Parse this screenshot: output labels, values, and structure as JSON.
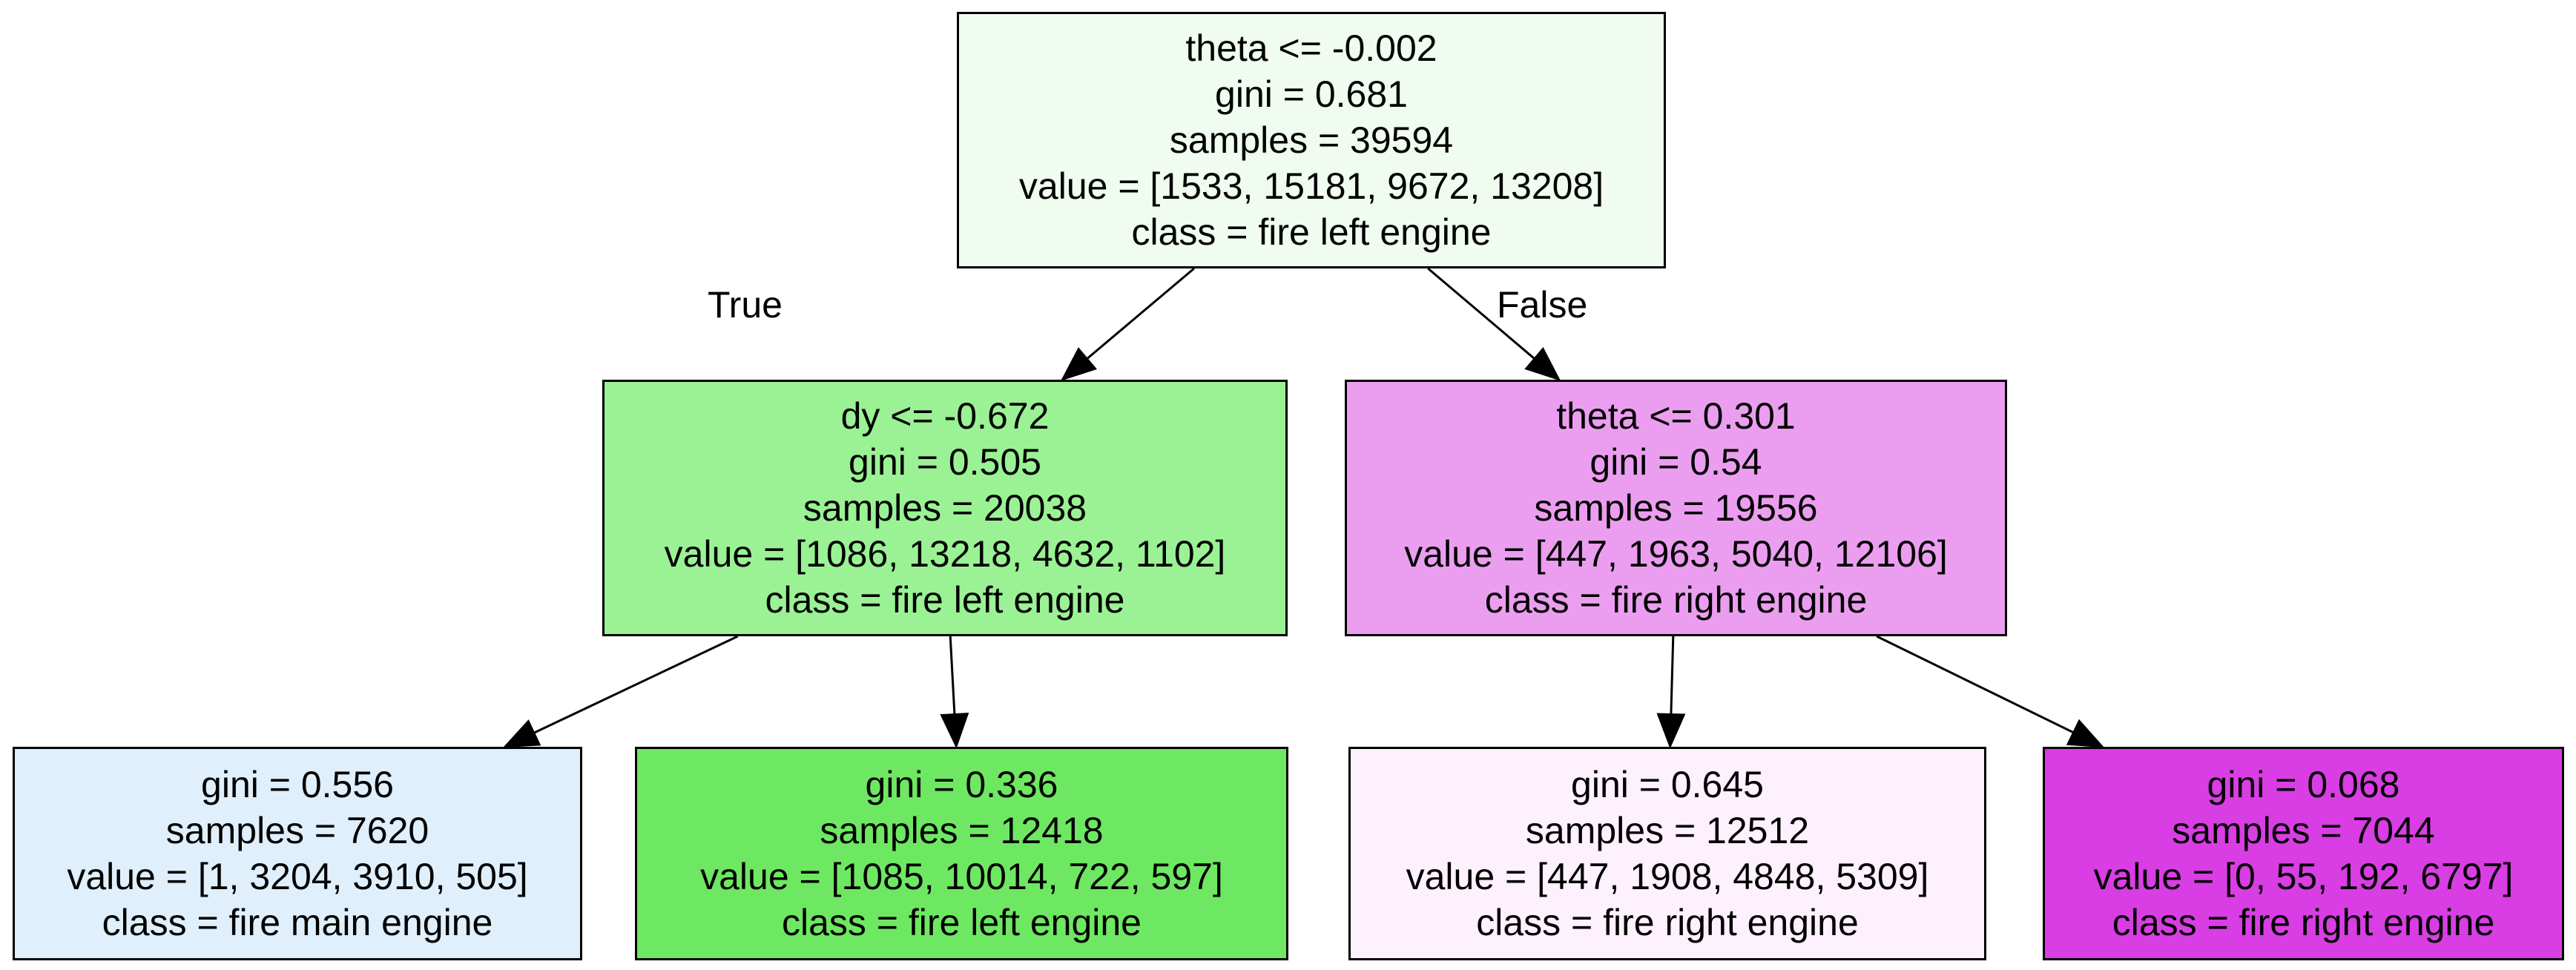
{
  "nodes": [
    {
      "id": "node-0",
      "color": "#f0fcf0",
      "lines": [
        "theta <= -0.002",
        "gini = 0.681",
        "samples = 39594",
        "value = [1533, 15181, 9672, 13208]",
        "class = fire left engine"
      ]
    },
    {
      "id": "node-1",
      "color": "#9af294",
      "lines": [
        "dy <= -0.672",
        "gini = 0.505",
        "samples = 20038",
        "value = [1086, 13218, 4632, 1102]",
        "class = fire left engine"
      ]
    },
    {
      "id": "node-2",
      "color": "#eb9ef0",
      "lines": [
        "theta <= 0.301",
        "gini = 0.54",
        "samples = 19556",
        "value = [447, 1963, 5040, 12106]",
        "class = fire right engine"
      ]
    },
    {
      "id": "node-3",
      "color": "#dfeffb",
      "lines": [
        "gini = 0.556",
        "samples = 7620",
        "value = [1, 3204, 3910, 505]",
        "class = fire main engine"
      ]
    },
    {
      "id": "node-4",
      "color": "#6ee862",
      "lines": [
        "gini = 0.336",
        "samples = 12418",
        "value = [1085, 10014, 722, 597]",
        "class = fire left engine"
      ]
    },
    {
      "id": "node-5",
      "color": "#fdf1fd",
      "lines": [
        "gini = 0.645",
        "samples = 12512",
        "value = [447, 1908, 4848, 5309]",
        "class = fire right engine"
      ]
    },
    {
      "id": "node-6",
      "color": "#d83ee3",
      "lines": [
        "gini = 0.068",
        "samples = 7044",
        "value = [0, 55, 192, 6797]",
        "class = fire right engine"
      ]
    }
  ],
  "edges": [
    {
      "from": "node-0",
      "to": "node-1"
    },
    {
      "from": "node-0",
      "to": "node-2"
    },
    {
      "from": "node-1",
      "to": "node-3"
    },
    {
      "from": "node-1",
      "to": "node-4"
    },
    {
      "from": "node-2",
      "to": "node-5"
    },
    {
      "from": "node-2",
      "to": "node-6"
    }
  ],
  "edge_labels": {
    "true_label": "True",
    "false_label": "False"
  }
}
